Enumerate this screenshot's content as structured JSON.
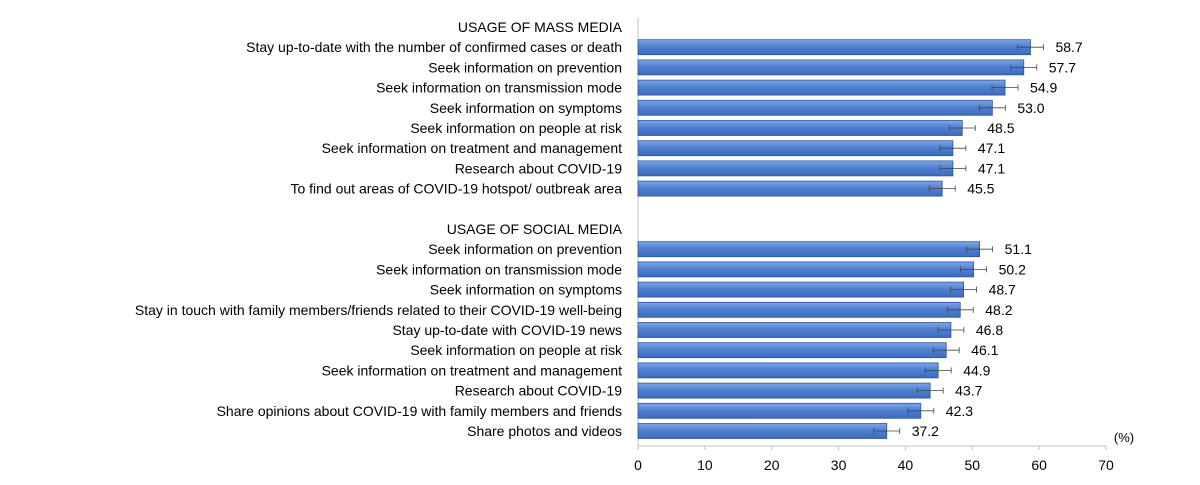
{
  "chart_data": {
    "type": "bar",
    "orientation": "horizontal",
    "grid": false,
    "xlim": [
      0,
      70
    ],
    "x_ticks": [
      0,
      10,
      20,
      30,
      40,
      50,
      60,
      70
    ],
    "x_unit_label": "(%)",
    "bar_color": "#4F81D0",
    "bar_edge_color": "#2E5597",
    "error_bars": true,
    "groups": [
      {
        "heading": "USAGE OF MASS MEDIA",
        "items": [
          {
            "label": "Stay up-to-date with the number of confirmed cases or death",
            "value": 58.7,
            "value_label": "58.7"
          },
          {
            "label": "Seek information on prevention",
            "value": 57.7,
            "value_label": "57.7"
          },
          {
            "label": "Seek information on transmission mode",
            "value": 54.9,
            "value_label": "54.9"
          },
          {
            "label": "Seek information on symptoms",
            "value": 53.0,
            "value_label": "53.0"
          },
          {
            "label": "Seek information on people at risk",
            "value": 48.5,
            "value_label": "48.5"
          },
          {
            "label": "Seek information on treatment and management",
            "value": 47.1,
            "value_label": "47.1"
          },
          {
            "label": "Research about COVID-19",
            "value": 47.1,
            "value_label": "47.1"
          },
          {
            "label": "To find out areas of COVID-19 hotspot/ outbreak area",
            "value": 45.5,
            "value_label": "45.5"
          }
        ]
      },
      {
        "heading": "USAGE OF SOCIAL MEDIA",
        "items": [
          {
            "label": "Seek information on prevention",
            "value": 51.1,
            "value_label": "51.1"
          },
          {
            "label": "Seek information on transmission mode",
            "value": 50.2,
            "value_label": "50.2"
          },
          {
            "label": "Seek information on symptoms",
            "value": 48.7,
            "value_label": "48.7"
          },
          {
            "label": "Stay in touch with family members/friends related to their COVID-19 well-being",
            "value": 48.2,
            "value_label": "48.2"
          },
          {
            "label": "Stay up-to-date with COVID-19 news",
            "value": 46.8,
            "value_label": "46.8"
          },
          {
            "label": "Seek information on people at risk",
            "value": 46.1,
            "value_label": "46.1"
          },
          {
            "label": "Seek information on treatment and management",
            "value": 44.9,
            "value_label": "44.9"
          },
          {
            "label": "Research about COVID-19",
            "value": 43.7,
            "value_label": "43.7"
          },
          {
            "label": "Share opinions about COVID-19 with family members and friends",
            "value": 42.3,
            "value_label": "42.3"
          },
          {
            "label": "Share photos and videos",
            "value": 37.2,
            "value_label": "37.2"
          }
        ]
      }
    ]
  }
}
